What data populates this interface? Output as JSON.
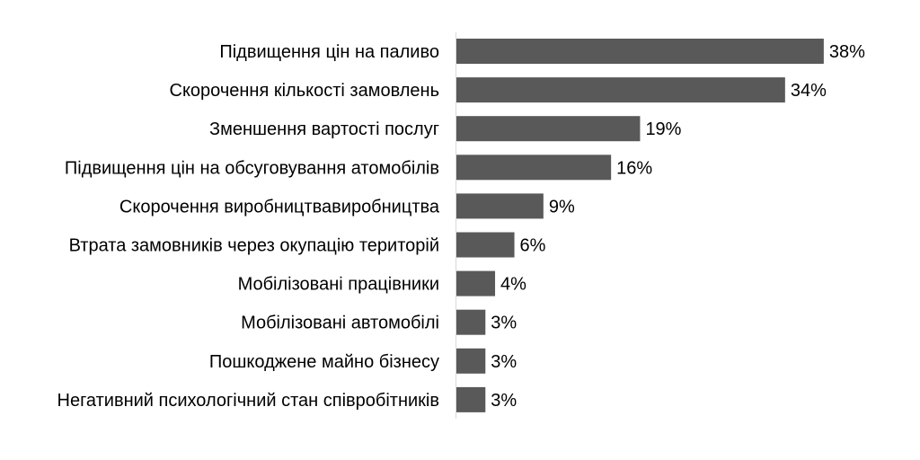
{
  "chart_data": {
    "type": "bar",
    "orientation": "horizontal",
    "title": "",
    "xlabel": "",
    "ylabel": "",
    "xlim": [
      0,
      38
    ],
    "grid": false,
    "bar_color": "#595959",
    "categories": [
      "Підвищення цін на паливо",
      "Скорочення кількості замовлень",
      "Зменшення вартості послуг",
      "Підвищення цін на обсуговування атомобілів",
      "Скорочення виробництвавиробництва",
      "Втрата замовників через окупацію територій",
      "Мобілізовані працівники",
      "Мобілізовані автомобілі",
      "Пошкоджене майно бізнесу",
      "Негативний психологічний стан співробітників"
    ],
    "values": [
      38,
      34,
      19,
      16,
      9,
      6,
      4,
      3,
      3,
      3
    ],
    "data_labels": [
      "38%",
      "34%",
      "19%",
      "16%",
      "9%",
      "6%",
      "4%",
      "3%",
      "3%",
      "3%"
    ]
  }
}
